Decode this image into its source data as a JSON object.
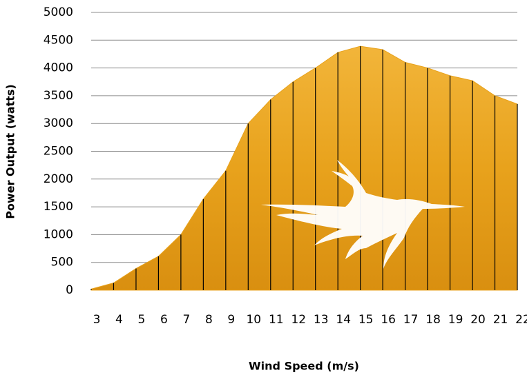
{
  "chart_data": {
    "type": "area",
    "x_label": "Wind Speed (m/s)",
    "y_label": "Power Output (watts)",
    "x": [
      3,
      4,
      5,
      6,
      7,
      8,
      9,
      10,
      11,
      12,
      13,
      14,
      15,
      16,
      17,
      18,
      19,
      20,
      21,
      22
    ],
    "values": [
      20,
      130,
      390,
      610,
      1000,
      1640,
      2150,
      3000,
      3430,
      3750,
      4000,
      4280,
      4390,
      4330,
      4100,
      4000,
      3860,
      3770,
      3500,
      3350
    ],
    "color": "#e8a21c",
    "xlim": [
      3,
      22
    ],
    "ylim": [
      0,
      5000
    ],
    "yticks": [
      0,
      500,
      1000,
      1500,
      2000,
      2500,
      3000,
      3500,
      4000,
      4500,
      5000
    ],
    "grid": true
  }
}
